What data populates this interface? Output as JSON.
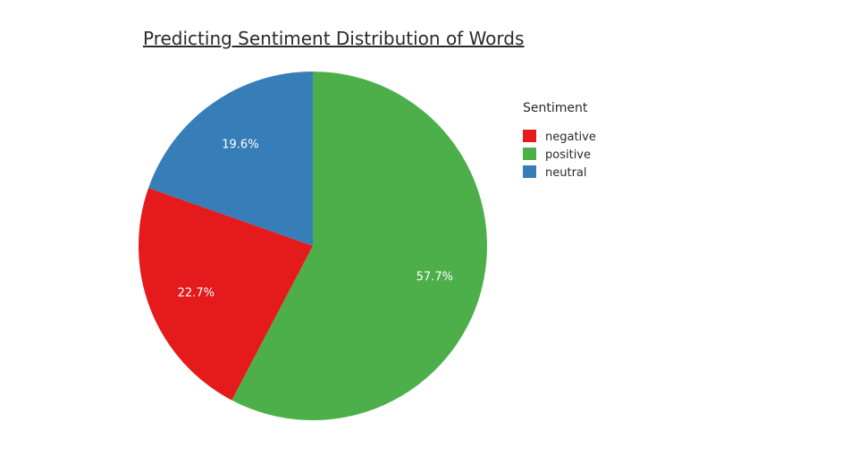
{
  "chart_data": {
    "type": "pie",
    "title": "Predicting Sentiment Distribution of Words",
    "legend_title": "Sentiment",
    "legend_position": "right",
    "slices": [
      {
        "name": "negative",
        "value": 22.7,
        "label": "22.7%",
        "color": "#e41a1c"
      },
      {
        "name": "positive",
        "value": 57.7,
        "label": "57.7%",
        "color": "#4daf4a"
      },
      {
        "name": "neutral",
        "value": 19.6,
        "label": "19.6%",
        "color": "#377eb8"
      }
    ]
  }
}
